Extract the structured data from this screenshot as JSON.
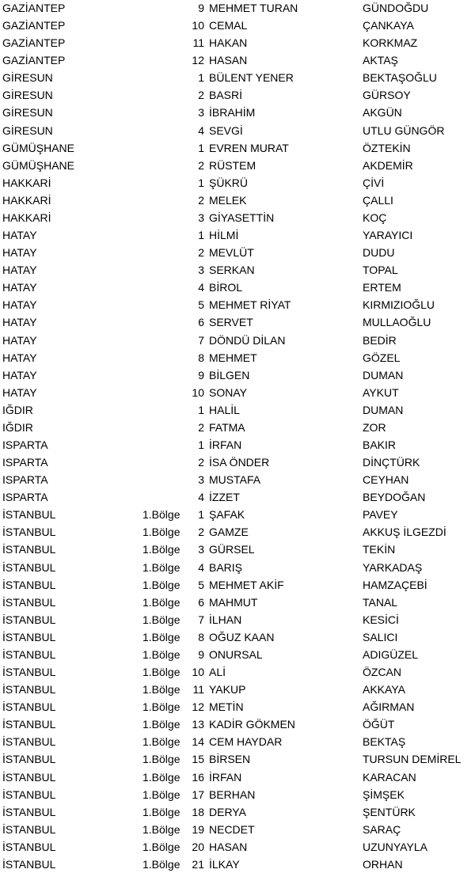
{
  "rows": [
    [
      "GAZİANTEP",
      "",
      "9",
      "MEHMET TURAN",
      "GÜNDOĞDU"
    ],
    [
      "GAZİANTEP",
      "",
      "10",
      "CEMAL",
      "ÇANKAYA"
    ],
    [
      "GAZİANTEP",
      "",
      "11",
      "HAKAN",
      "KORKMAZ"
    ],
    [
      "GAZİANTEP",
      "",
      "12",
      "HASAN",
      "AKTAŞ"
    ],
    [
      "GİRESUN",
      "",
      "1",
      "BÜLENT YENER",
      "BEKTAŞOĞLU"
    ],
    [
      "GİRESUN",
      "",
      "2",
      "BASRİ",
      "GÜRSOY"
    ],
    [
      "GİRESUN",
      "",
      "3",
      "İBRAHİM",
      "AKGÜN"
    ],
    [
      "GİRESUN",
      "",
      "4",
      "SEVGİ",
      "UTLU GÜNGÖR"
    ],
    [
      "GÜMÜŞHANE",
      "",
      "1",
      "EVREN MURAT",
      "ÖZTEKİN"
    ],
    [
      "GÜMÜŞHANE",
      "",
      "2",
      "RÜSTEM",
      "AKDEMİR"
    ],
    [
      "HAKKARİ",
      "",
      "1",
      "ŞÜKRÜ",
      "ÇİVİ"
    ],
    [
      "HAKKARİ",
      "",
      "2",
      "MELEK",
      "ÇALLI"
    ],
    [
      "HAKKARİ",
      "",
      "3",
      "GİYASETTİN",
      "KOÇ"
    ],
    [
      "HATAY",
      "",
      "1",
      "HİLMİ",
      "YARAYICI"
    ],
    [
      "HATAY",
      "",
      "2",
      "MEVLÜT",
      "DUDU"
    ],
    [
      "HATAY",
      "",
      "3",
      "SERKAN",
      "TOPAL"
    ],
    [
      "HATAY",
      "",
      "4",
      "BİROL",
      "ERTEM"
    ],
    [
      "HATAY",
      "",
      "5",
      "MEHMET RİYAT",
      "KIRMIZIOĞLU"
    ],
    [
      "HATAY",
      "",
      "6",
      "SERVET",
      "MULLAOĞLU"
    ],
    [
      "HATAY",
      "",
      "7",
      "DÖNDÜ DİLAN",
      "BEDİR"
    ],
    [
      "HATAY",
      "",
      "8",
      "MEHMET",
      "GÖZEL"
    ],
    [
      "HATAY",
      "",
      "9",
      "BİLGEN",
      "DUMAN"
    ],
    [
      "HATAY",
      "",
      "10",
      "SONAY",
      "AYKUT"
    ],
    [
      "IĞDIR",
      "",
      "1",
      "HALİL",
      "DUMAN"
    ],
    [
      "IĞDIR",
      "",
      "2",
      "FATMA",
      "ZOR"
    ],
    [
      "ISPARTA",
      "",
      "1",
      "İRFAN",
      "BAKIR"
    ],
    [
      "ISPARTA",
      "",
      "2",
      "İSA ÖNDER",
      "DİNÇTÜRK"
    ],
    [
      "ISPARTA",
      "",
      "3",
      "MUSTAFA",
      "CEYHAN"
    ],
    [
      "ISPARTA",
      "",
      "4",
      "İZZET",
      "BEYDOĞAN"
    ],
    [
      "İSTANBUL",
      "1.Bölge",
      "1",
      "ŞAFAK",
      "PAVEY"
    ],
    [
      "İSTANBUL",
      "1.Bölge",
      "2",
      "GAMZE",
      "AKKUŞ İLGEZDİ"
    ],
    [
      "İSTANBUL",
      "1.Bölge",
      "3",
      "GÜRSEL",
      "TEKİN"
    ],
    [
      "İSTANBUL",
      "1.Bölge",
      "4",
      "BARIŞ",
      "YARKADAŞ"
    ],
    [
      "İSTANBUL",
      "1.Bölge",
      "5",
      "MEHMET AKİF",
      "HAMZAÇEBİ"
    ],
    [
      "İSTANBUL",
      "1.Bölge",
      "6",
      "MAHMUT",
      "TANAL"
    ],
    [
      "İSTANBUL",
      "1.Bölge",
      "7",
      "İLHAN",
      "KESİCİ"
    ],
    [
      "İSTANBUL",
      "1.Bölge",
      "8",
      "OĞUZ KAAN",
      "SALICI"
    ],
    [
      "İSTANBUL",
      "1.Bölge",
      "9",
      "ONURSAL",
      "ADIGÜZEL"
    ],
    [
      "İSTANBUL",
      "1.Bölge",
      "10",
      "ALİ",
      "ÖZCAN"
    ],
    [
      "İSTANBUL",
      "1.Bölge",
      "11",
      "YAKUP",
      "AKKAYA"
    ],
    [
      "İSTANBUL",
      "1.Bölge",
      "12",
      "METİN",
      "AĞIRMAN"
    ],
    [
      "İSTANBUL",
      "1.Bölge",
      "13",
      "KADİR GÖKMEN",
      "ÖĞÜT"
    ],
    [
      "İSTANBUL",
      "1.Bölge",
      "14",
      "CEM HAYDAR",
      "BEKTAŞ"
    ],
    [
      "İSTANBUL",
      "1.Bölge",
      "15",
      "BİRSEN",
      "TURSUN DEMİREL"
    ],
    [
      "İSTANBUL",
      "1.Bölge",
      "16",
      "İRFAN",
      "KARACAN"
    ],
    [
      "İSTANBUL",
      "1.Bölge",
      "17",
      "BERHAN",
      "ŞİMŞEK"
    ],
    [
      "İSTANBUL",
      "1.Bölge",
      "18",
      "DERYA",
      "ŞENTÜRK"
    ],
    [
      "İSTANBUL",
      "1.Bölge",
      "19",
      "NECDET",
      "SARAÇ"
    ],
    [
      "İSTANBUL",
      "1.Bölge",
      "20",
      "HASAN",
      "UZUNYAYLA"
    ],
    [
      "İSTANBUL",
      "1.Bölge",
      "21",
      "İLKAY",
      "ORHAN"
    ]
  ]
}
